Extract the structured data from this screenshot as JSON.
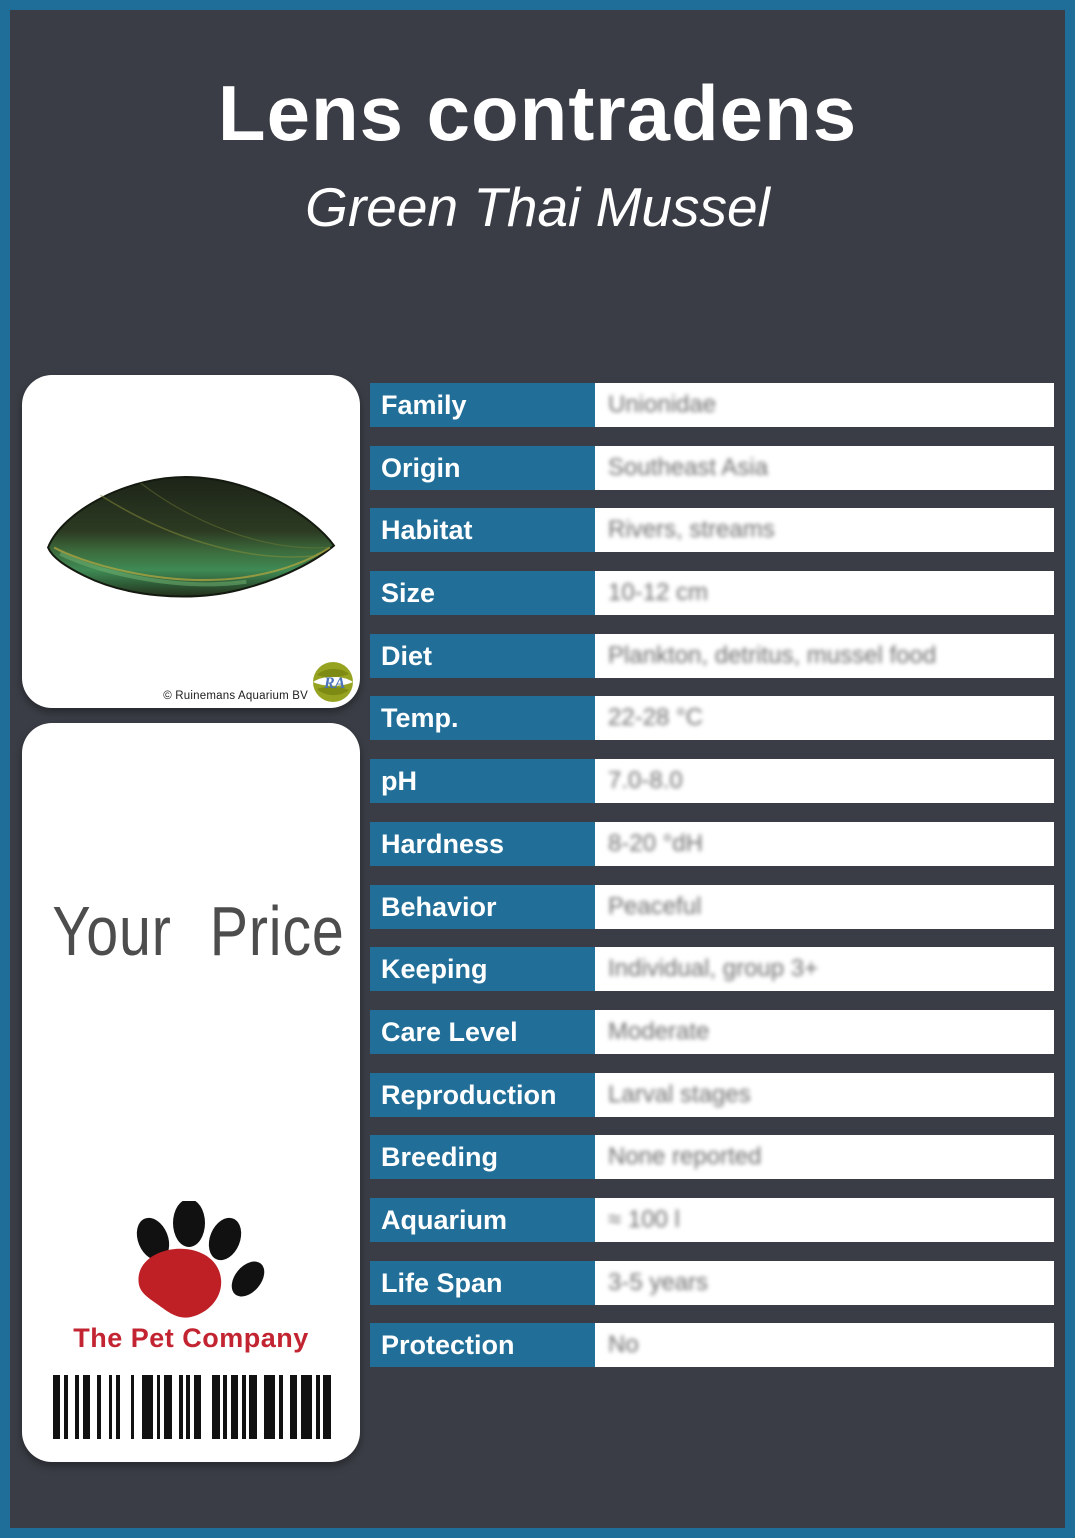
{
  "header": {
    "title": "Lens contradens",
    "subtitle": "Green Thai Mussel"
  },
  "photo_card": {
    "subject": "green-thai-mussel-photo",
    "copyright": "© Ruinemans Aquarium BV",
    "supplier_logo_text": "RA"
  },
  "price_card": {
    "price_label": "Your Price",
    "brand": "The Pet Company"
  },
  "table": {
    "rows": [
      {
        "label": "Family",
        "value": "Unionidae"
      },
      {
        "label": "Origin",
        "value": "Southeast Asia"
      },
      {
        "label": "Habitat",
        "value": "Rivers, streams"
      },
      {
        "label": "Size",
        "value": "10-12 cm"
      },
      {
        "label": "Diet",
        "value": "Plankton, detritus, mussel food"
      },
      {
        "label": "Temp.",
        "value": "22-28 °C"
      },
      {
        "label": "pH",
        "value": "7.0-8.0"
      },
      {
        "label": "Hardness",
        "value": "8-20 °dH"
      },
      {
        "label": "Behavior",
        "value": "Peaceful"
      },
      {
        "label": "Keeping",
        "value": "Individual, group 3+"
      },
      {
        "label": "Care Level",
        "value": "Moderate"
      },
      {
        "label": "Reproduction",
        "value": "Larval stages"
      },
      {
        "label": "Breeding",
        "value": "None reported"
      },
      {
        "label": "Aquarium",
        "value": "≈ 100 l"
      },
      {
        "label": "Life Span",
        "value": "3-5 years"
      },
      {
        "label": "Protection",
        "value": "No"
      }
    ]
  },
  "colors": {
    "accent_blue": "#216e99",
    "background_charcoal": "#3a3d45",
    "brand_red": "#c32431",
    "value_text_gray": "#6f6f6f"
  },
  "barcode": {
    "pattern": [
      2,
      1,
      1,
      2,
      1,
      1,
      2,
      2,
      1,
      2,
      1,
      1,
      1,
      3,
      1,
      2,
      3,
      1,
      1,
      1,
      2,
      2,
      1,
      1,
      1,
      1,
      2,
      3,
      2,
      1,
      1,
      1,
      2,
      1,
      1,
      1,
      2,
      2,
      3,
      1,
      1,
      2,
      2,
      1,
      3,
      1,
      1,
      1,
      2
    ]
  }
}
